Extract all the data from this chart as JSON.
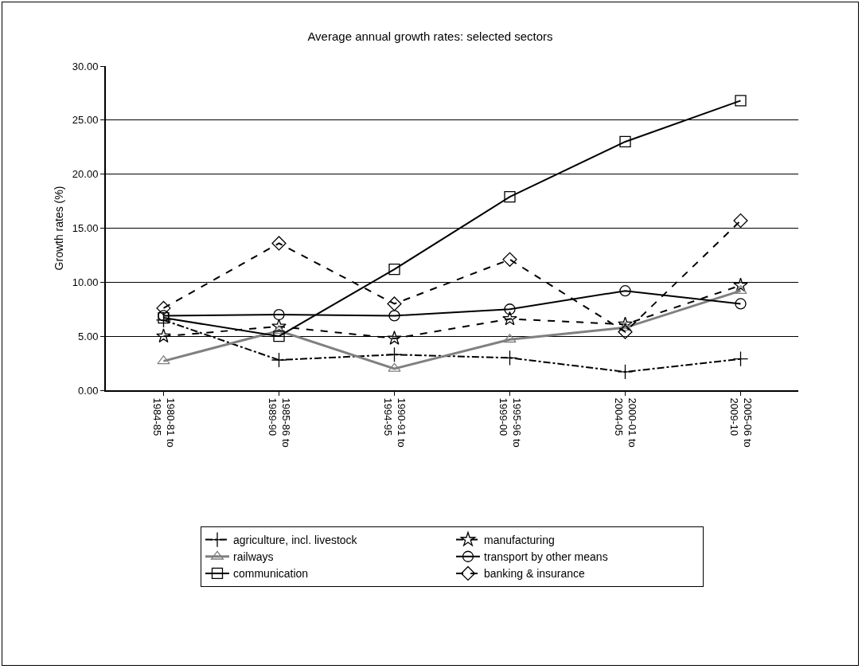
{
  "chart_data": {
    "type": "line",
    "title": "Average annual growth rates: selected sectors",
    "ylabel": "Growth rates (%)",
    "categories": [
      "1980-81 to\n1984-85",
      "1985-86 to\n1989-90",
      "1990-91 to\n1994-95",
      "1995-96 to\n1999-00",
      "2000-01 to\n2004-05",
      "2005-06 to\n2009-10"
    ],
    "series": [
      {
        "name": "agriculture, incl. livestock",
        "color": "#000000",
        "marker": "cross",
        "line_style": "dotted",
        "values": [
          6.5,
          2.8,
          3.3,
          3.0,
          1.7,
          2.9
        ]
      },
      {
        "name": "manufacturing",
        "color": "#000000",
        "marker": "star",
        "line_style": "dashed",
        "values": [
          5.0,
          5.9,
          4.8,
          6.6,
          6.1,
          9.7
        ]
      },
      {
        "name": "railways",
        "color": "#808080",
        "marker": "triangle",
        "line_style": "solid",
        "values": [
          2.7,
          5.5,
          2.0,
          4.7,
          5.8,
          9.2
        ]
      },
      {
        "name": "transport by other means",
        "color": "#000000",
        "marker": "circle",
        "line_style": "solid",
        "values": [
          6.9,
          7.0,
          6.9,
          7.5,
          9.2,
          8.0
        ]
      },
      {
        "name": "communication",
        "color": "#000000",
        "marker": "square",
        "line_style": "solid",
        "values": [
          6.7,
          5.0,
          11.2,
          17.9,
          23.0,
          26.8
        ]
      },
      {
        "name": "banking & insurance",
        "color": "#000000",
        "marker": "diamond",
        "line_style": "dashed",
        "values": [
          7.6,
          13.6,
          8.0,
          12.1,
          5.4,
          15.7
        ]
      }
    ],
    "ylim": [
      0,
      30
    ],
    "yticks": [
      {
        "value": 0,
        "label": "0.00"
      },
      {
        "value": 5,
        "label": "5.00"
      },
      {
        "value": 10,
        "label": "10.00"
      },
      {
        "value": 15,
        "label": "15.00"
      },
      {
        "value": 20,
        "label": "20.00"
      },
      {
        "value": 25,
        "label": "25.00"
      },
      {
        "value": 30,
        "label": "30.00"
      }
    ],
    "grid": "y",
    "legend": "bottom"
  }
}
